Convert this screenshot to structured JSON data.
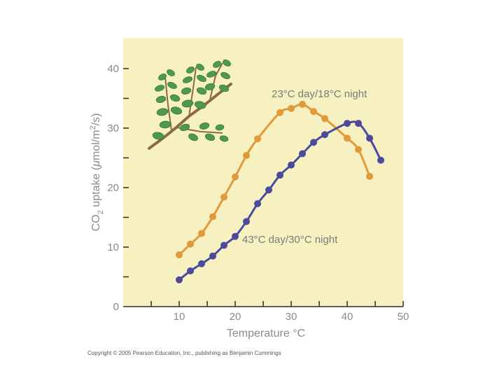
{
  "chart_data": {
    "type": "line",
    "title": "",
    "xlabel": "Temperature °C",
    "ylabel_parts": {
      "a": "CO",
      "sub": "2",
      "b": " uptake (",
      "mu": "μ",
      "c": "mol/m",
      "sup": "2",
      "d": "/s)"
    },
    "xlim": [
      0,
      50
    ],
    "ylim": [
      0,
      40
    ],
    "x_ticks": [
      0,
      5,
      10,
      15,
      20,
      25,
      30,
      35,
      40,
      45,
      50
    ],
    "x_tick_labels": [
      "10",
      "20",
      "30",
      "40",
      "50"
    ],
    "y_tick_labels": [
      "0",
      "10",
      "20",
      "30",
      "40"
    ],
    "grid": false,
    "series": [
      {
        "name": "23°C day/18°C night",
        "color": "#e09a3a",
        "x": [
          10,
          12,
          14,
          16,
          18,
          20,
          22,
          24,
          28,
          30,
          32,
          34,
          36,
          40,
          42,
          44
        ],
        "y": [
          8.7,
          10.5,
          12.3,
          15.1,
          18.4,
          21.8,
          25.4,
          28.2,
          32.6,
          33.3,
          34.0,
          32.8,
          31.6,
          28.3,
          26.4,
          21.9
        ]
      },
      {
        "name": "43°C day/30°C night",
        "color": "#4b4a9c",
        "x": [
          10,
          12,
          14,
          16,
          18,
          20,
          22,
          24,
          26,
          28,
          30,
          32,
          34,
          36,
          40,
          42,
          44,
          46
        ],
        "y": [
          4.5,
          6.0,
          7.2,
          8.5,
          10.3,
          11.8,
          14.3,
          17.3,
          19.6,
          22.1,
          23.8,
          25.7,
          27.6,
          28.9,
          30.8,
          30.8,
          28.3,
          24.6
        ]
      }
    ]
  },
  "copyright": "Copyright © 2005 Pearson Education, Inc., publishing as Benjamin Cummings"
}
